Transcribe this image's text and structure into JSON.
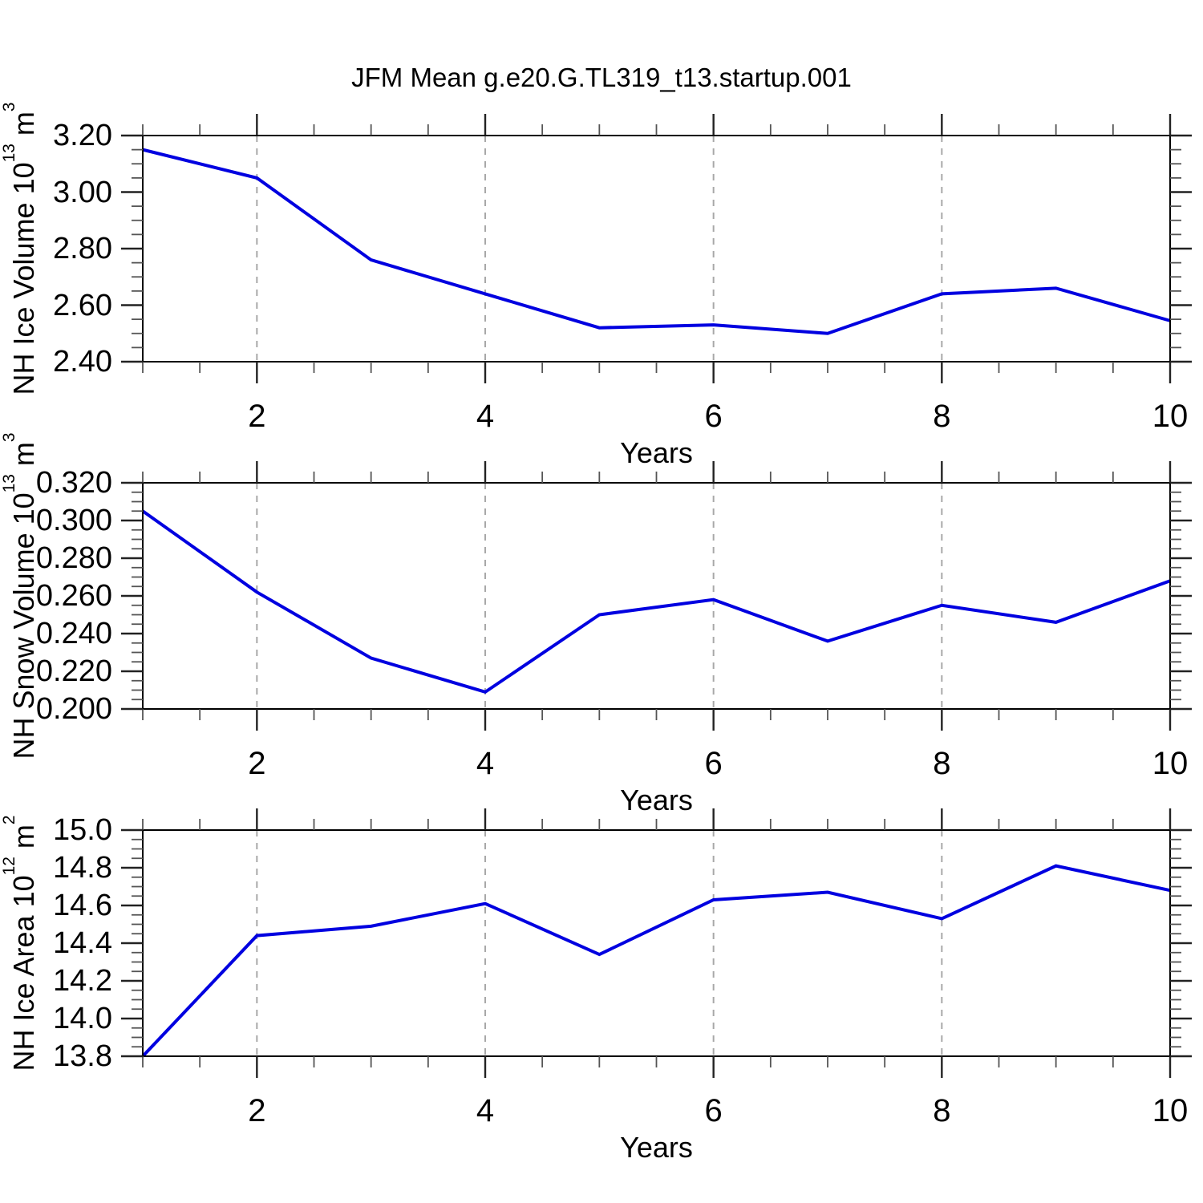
{
  "title": "JFM Mean g.e20.G.TL319_t13.startup.001",
  "colors": {
    "line": "#0000e0",
    "grid": "#a8a8a8",
    "frame": "#000000",
    "major_tick": "#222222",
    "minor_tick": "#555555",
    "background": "#ffffff"
  },
  "chart_data": [
    {
      "type": "line",
      "series_name": "nh-ice-volume",
      "x": [
        1,
        2,
        3,
        4,
        5,
        6,
        7,
        8,
        9,
        10
      ],
      "values": [
        3.15,
        3.05,
        2.76,
        2.64,
        2.52,
        2.53,
        2.5,
        2.64,
        2.66,
        2.545
      ],
      "xlabel": "Years",
      "ylabel": "NH Ice Volume 10^13 m^3",
      "xlim": [
        1,
        10
      ],
      "ylim": [
        2.4,
        3.2
      ],
      "ytick_major_step": 0.2,
      "ytick_minor_step": 0.05,
      "ytick_decimals": 2,
      "xticks_labeled": [
        2,
        4,
        6,
        8,
        10
      ],
      "xtick_minor_step": 0.5,
      "grid_x_dashed": [
        2,
        4,
        6,
        8
      ],
      "legend": "none",
      "grid": "vertical-dashed-only"
    },
    {
      "type": "line",
      "series_name": "nh-snow-volume",
      "x": [
        1,
        2,
        3,
        4,
        5,
        6,
        7,
        8,
        9,
        10
      ],
      "values": [
        0.305,
        0.262,
        0.227,
        0.209,
        0.25,
        0.258,
        0.236,
        0.255,
        0.246,
        0.268
      ],
      "xlabel": "Years",
      "ylabel": "NH Snow Volume 10^13 m^3",
      "xlim": [
        1,
        10
      ],
      "ylim": [
        0.2,
        0.32
      ],
      "ytick_major_step": 0.02,
      "ytick_minor_step": 0.005,
      "ytick_decimals": 3,
      "xticks_labeled": [
        2,
        4,
        6,
        8,
        10
      ],
      "xtick_minor_step": 0.5,
      "grid_x_dashed": [
        2,
        4,
        6,
        8
      ],
      "legend": "none",
      "grid": "vertical-dashed-only"
    },
    {
      "type": "line",
      "series_name": "nh-ice-area",
      "x": [
        1,
        2,
        3,
        4,
        5,
        6,
        7,
        8,
        9,
        10
      ],
      "values": [
        13.8,
        14.44,
        14.49,
        14.61,
        14.34,
        14.63,
        14.67,
        14.53,
        14.81,
        14.68
      ],
      "xlabel": "Years",
      "ylabel": "NH Ice Area 10^12 m^2",
      "xlim": [
        1,
        10
      ],
      "ylim": [
        13.8,
        15.0
      ],
      "ytick_major_step": 0.2,
      "ytick_minor_step": 0.05,
      "ytick_decimals": 1,
      "xticks_labeled": [
        2,
        4,
        6,
        8,
        10
      ],
      "xtick_minor_step": 0.5,
      "grid_x_dashed": [
        2,
        4,
        6,
        8
      ],
      "legend": "none",
      "grid": "vertical-dashed-only"
    }
  ]
}
